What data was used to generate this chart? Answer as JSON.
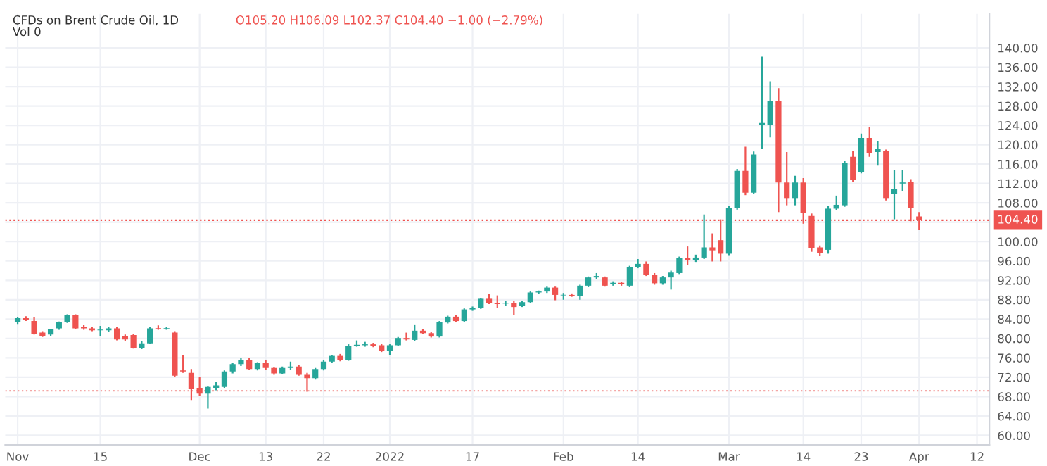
{
  "chart_data": {
    "type": "candlestick",
    "title": "CFDs on Brent Crude Oil, 1D",
    "annotations": [
      "O105.20 H106.09 L102.37 C104.40 −1.00 (−2.79%)",
      "Vol 0"
    ],
    "categories": [
      "Nov",
      null,
      null,
      null,
      null,
      null,
      null,
      null,
      null,
      null,
      "15",
      null,
      null,
      null,
      null,
      null,
      null,
      null,
      null,
      null,
      null,
      null,
      "Dec",
      null,
      null,
      null,
      null,
      null,
      null,
      null,
      "13",
      null,
      null,
      null,
      null,
      null,
      null,
      "22",
      null,
      null,
      null,
      null,
      null,
      null,
      null,
      "2022",
      null,
      null,
      null,
      null,
      null,
      null,
      null,
      null,
      null,
      "17",
      null,
      null,
      null,
      null,
      null,
      null,
      null,
      null,
      null,
      null,
      "Feb",
      null,
      null,
      null,
      null,
      null,
      null,
      null,
      null,
      "14",
      null,
      null,
      null,
      null,
      null,
      null,
      null,
      null,
      null,
      null,
      "Mar",
      null,
      null,
      null,
      null,
      null,
      null,
      null,
      null,
      "14",
      null,
      null,
      null,
      null,
      null,
      null,
      "23",
      null,
      null,
      null,
      null,
      null,
      null,
      "Apr",
      null,
      null,
      null,
      null,
      null,
      null,
      "12",
      null
    ],
    "ohlc": [
      [
        83.4,
        84.5,
        83.0,
        84.2
      ],
      [
        84.2,
        84.6,
        83.6,
        83.9
      ],
      [
        83.6,
        84.4,
        80.8,
        81.0
      ],
      [
        81.2,
        81.5,
        80.3,
        80.5
      ],
      [
        80.8,
        82.0,
        80.5,
        81.9
      ],
      [
        82.1,
        83.5,
        81.8,
        83.4
      ],
      [
        83.4,
        85.0,
        83.2,
        84.8
      ],
      [
        84.8,
        85.0,
        81.9,
        82.1
      ],
      [
        82.4,
        82.8,
        81.8,
        82.1
      ],
      [
        82.1,
        82.3,
        81.5,
        81.7
      ],
      [
        81.7,
        82.6,
        80.5,
        81.8
      ],
      [
        81.7,
        82.3,
        81.4,
        82.1
      ],
      [
        82.1,
        82.3,
        79.6,
        79.8
      ],
      [
        80.5,
        80.8,
        79.5,
        79.8
      ],
      [
        80.7,
        81.0,
        77.9,
        78.1
      ],
      [
        78.1,
        79.4,
        77.8,
        79.0
      ],
      [
        79.0,
        82.3,
        78.8,
        82.1
      ],
      [
        82.1,
        82.7,
        81.8,
        82.0
      ],
      [
        82.0,
        82.4,
        81.8,
        82.1
      ],
      [
        81.2,
        81.5,
        72.0,
        72.3
      ],
      [
        73.4,
        76.6,
        72.9,
        73.2
      ],
      [
        72.9,
        73.7,
        67.3,
        69.6
      ],
      [
        69.8,
        72.0,
        68.2,
        68.6
      ],
      [
        68.6,
        70.2,
        65.5,
        70.0
      ],
      [
        69.8,
        71.0,
        69.3,
        70.3
      ],
      [
        70.0,
        73.4,
        69.8,
        73.2
      ],
      [
        73.2,
        75.0,
        72.8,
        74.7
      ],
      [
        74.7,
        75.9,
        74.3,
        75.6
      ],
      [
        75.6,
        76.0,
        73.5,
        73.7
      ],
      [
        73.7,
        75.1,
        73.4,
        74.9
      ],
      [
        74.9,
        75.6,
        73.6,
        73.9
      ],
      [
        73.9,
        74.1,
        72.5,
        72.8
      ],
      [
        72.8,
        74.2,
        72.6,
        73.9
      ],
      [
        73.9,
        75.2,
        73.6,
        74.2
      ],
      [
        74.2,
        74.5,
        72.3,
        72.5
      ],
      [
        72.5,
        72.9,
        69.0,
        71.8
      ],
      [
        71.8,
        73.9,
        71.5,
        73.7
      ],
      [
        73.7,
        75.5,
        73.4,
        75.2
      ],
      [
        75.2,
        76.6,
        75.0,
        76.4
      ],
      [
        76.4,
        76.8,
        75.3,
        75.6
      ],
      [
        75.6,
        78.8,
        75.4,
        78.5
      ],
      [
        78.5,
        79.6,
        78.3,
        78.7
      ],
      [
        78.6,
        79.3,
        78.3,
        78.8
      ],
      [
        78.8,
        79.1,
        78.2,
        78.4
      ],
      [
        78.6,
        78.9,
        77.2,
        77.4
      ],
      [
        77.4,
        78.8,
        76.6,
        78.6
      ],
      [
        78.6,
        80.3,
        78.4,
        80.1
      ],
      [
        80.1,
        81.2,
        79.6,
        79.8
      ],
      [
        79.7,
        82.9,
        79.5,
        81.6
      ],
      [
        81.6,
        82.0,
        80.9,
        81.1
      ],
      [
        81.1,
        81.4,
        80.2,
        80.4
      ],
      [
        80.4,
        83.6,
        80.2,
        83.4
      ],
      [
        83.3,
        84.7,
        83.1,
        84.5
      ],
      [
        84.5,
        84.9,
        83.4,
        83.6
      ],
      [
        83.6,
        86.2,
        83.4,
        86.0
      ],
      [
        86.0,
        86.6,
        85.7,
        86.3
      ],
      [
        86.3,
        88.4,
        86.1,
        88.2
      ],
      [
        88.2,
        89.2,
        87.1,
        87.3
      ],
      [
        87.3,
        88.9,
        86.3,
        87.1
      ],
      [
        87.2,
        87.8,
        86.8,
        87.3
      ],
      [
        87.3,
        87.7,
        84.9,
        86.5
      ],
      [
        86.8,
        87.7,
        86.5,
        87.5
      ],
      [
        87.5,
        89.7,
        87.3,
        89.5
      ],
      [
        89.5,
        89.9,
        89.2,
        89.7
      ],
      [
        89.7,
        90.7,
        89.4,
        90.5
      ],
      [
        90.5,
        90.7,
        87.9,
        89.0
      ],
      [
        88.9,
        89.4,
        88.0,
        89.0
      ],
      [
        89.0,
        89.3,
        88.6,
        88.8
      ],
      [
        88.8,
        91.1,
        88.0,
        90.9
      ],
      [
        90.9,
        92.8,
        90.6,
        92.6
      ],
      [
        92.6,
        93.5,
        92.3,
        92.9
      ],
      [
        92.6,
        92.8,
        90.7,
        90.9
      ],
      [
        91.2,
        91.8,
        90.9,
        91.5
      ],
      [
        91.5,
        91.7,
        90.9,
        91.2
      ],
      [
        90.9,
        95.0,
        90.6,
        94.8
      ],
      [
        94.8,
        96.4,
        94.5,
        95.4
      ],
      [
        95.4,
        95.9,
        92.9,
        93.2
      ],
      [
        93.2,
        93.5,
        91.1,
        91.4
      ],
      [
        91.4,
        92.9,
        91.1,
        92.6
      ],
      [
        92.6,
        94.0,
        90.1,
        93.6
      ],
      [
        93.5,
        96.9,
        93.3,
        96.6
      ],
      [
        96.6,
        99.0,
        95.2,
        96.2
      ],
      [
        96.2,
        97.3,
        95.8,
        96.7
      ],
      [
        96.7,
        105.6,
        96.4,
        98.8
      ],
      [
        98.8,
        101.7,
        95.9,
        98.2
      ],
      [
        100.3,
        104.6,
        95.9,
        97.5
      ],
      [
        97.5,
        107.3,
        97.2,
        106.9
      ],
      [
        107.0,
        115.0,
        106.6,
        114.6
      ],
      [
        114.6,
        119.6,
        109.6,
        110.1
      ],
      [
        110.1,
        118.6,
        109.8,
        118.0
      ],
      [
        124.0,
        138.2,
        119.1,
        124.5
      ],
      [
        124.0,
        133.1,
        121.5,
        129.1
      ],
      [
        129.1,
        131.7,
        106.1,
        112.2
      ],
      [
        112.2,
        118.5,
        107.5,
        109.0
      ],
      [
        109.0,
        113.6,
        107.5,
        112.2
      ],
      [
        112.2,
        113.1,
        103.7,
        105.9
      ],
      [
        105.3,
        105.8,
        97.9,
        98.6
      ],
      [
        98.8,
        99.2,
        97.0,
        97.6
      ],
      [
        98.3,
        107.3,
        97.5,
        106.8
      ],
      [
        106.8,
        109.5,
        106.5,
        107.6
      ],
      [
        107.5,
        116.6,
        107.2,
        116.2
      ],
      [
        117.5,
        118.8,
        112.3,
        112.8
      ],
      [
        114.4,
        122.3,
        114.1,
        121.4
      ],
      [
        121.4,
        123.7,
        117.5,
        118.2
      ],
      [
        118.5,
        120.8,
        115.7,
        119.2
      ],
      [
        118.7,
        119.0,
        108.5,
        109.0
      ],
      [
        109.8,
        114.8,
        104.6,
        110.8
      ],
      [
        112.0,
        114.8,
        110.5,
        112.2
      ],
      [
        112.4,
        112.9,
        104.2,
        106.9
      ],
      [
        105.2,
        106.09,
        102.37,
        104.4
      ],
      null,
      null,
      null,
      null,
      null,
      null,
      null,
      null
    ],
    "ylim": [
      58,
      147
    ],
    "yticks": [
      {
        "value": 60,
        "label": "60.00"
      },
      {
        "value": 64,
        "label": "64.00"
      },
      {
        "value": 68,
        "label": "68.00"
      },
      {
        "value": 72,
        "label": "72.00"
      },
      {
        "value": 76,
        "label": "76.00"
      },
      {
        "value": 80,
        "label": "80.00"
      },
      {
        "value": 84,
        "label": "84.00"
      },
      {
        "value": 88,
        "label": "88.00"
      },
      {
        "value": 92,
        "label": "92.00"
      },
      {
        "value": 96,
        "label": "96.00"
      },
      {
        "value": 100,
        "label": "100.00"
      },
      {
        "value": 104,
        "label": null
      },
      {
        "value": 108,
        "label": "108.00"
      },
      {
        "value": 112,
        "label": "112.00"
      },
      {
        "value": 116,
        "label": "116.00"
      },
      {
        "value": 120,
        "label": "120.00"
      },
      {
        "value": 124,
        "label": "124.00"
      },
      {
        "value": 128,
        "label": "128.00"
      },
      {
        "value": 132,
        "label": "132.00"
      },
      {
        "value": 136,
        "label": "136.00"
      },
      {
        "value": 140,
        "label": "140.00"
      }
    ],
    "ref_lines": [
      {
        "axis": "y",
        "value": 104.4,
        "label": "104.40",
        "color": "#ef5350",
        "line_style": "dotted"
      },
      {
        "axis": "y",
        "value": 69.2,
        "color": "#f4a6a5",
        "line_style": "dotted"
      }
    ],
    "grid": true,
    "legend": false
  }
}
